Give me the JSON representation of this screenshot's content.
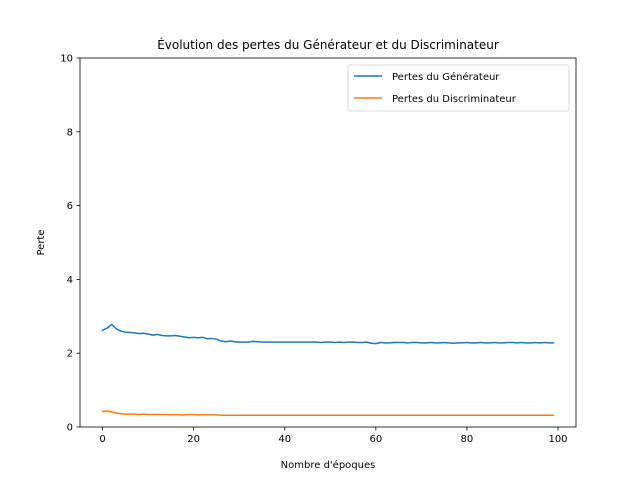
{
  "chart_data": {
    "type": "line",
    "title": "Évolution des pertes du Générateur et du Discriminateur",
    "xlabel": "Nombre d'époques",
    "ylabel": "Perte",
    "xlim": [
      -4.95,
      103.95
    ],
    "ylim": [
      0,
      10
    ],
    "xticks": [
      0,
      20,
      40,
      60,
      80,
      100
    ],
    "yticks": [
      0,
      2,
      4,
      6,
      8,
      10
    ],
    "grid": false,
    "legend_position": "top-right",
    "x": [
      0,
      1,
      2,
      3,
      4,
      5,
      6,
      7,
      8,
      9,
      10,
      11,
      12,
      13,
      14,
      15,
      16,
      17,
      18,
      19,
      20,
      21,
      22,
      23,
      24,
      25,
      26,
      27,
      28,
      29,
      30,
      31,
      32,
      33,
      34,
      35,
      36,
      37,
      38,
      39,
      40,
      41,
      42,
      43,
      44,
      45,
      46,
      47,
      48,
      49,
      50,
      51,
      52,
      53,
      54,
      55,
      56,
      57,
      58,
      59,
      60,
      61,
      62,
      63,
      64,
      65,
      66,
      67,
      68,
      69,
      70,
      71,
      72,
      73,
      74,
      75,
      76,
      77,
      78,
      79,
      80,
      81,
      82,
      83,
      84,
      85,
      86,
      87,
      88,
      89,
      90,
      91,
      92,
      93,
      94,
      95,
      96,
      97,
      98,
      99
    ],
    "series": [
      {
        "name": "Pertes du Générateur",
        "color": "#1f77b4",
        "values": [
          2.62,
          2.68,
          2.78,
          2.66,
          2.6,
          2.57,
          2.56,
          2.55,
          2.53,
          2.54,
          2.52,
          2.49,
          2.51,
          2.48,
          2.47,
          2.47,
          2.48,
          2.46,
          2.44,
          2.42,
          2.43,
          2.42,
          2.43,
          2.39,
          2.4,
          2.38,
          2.33,
          2.31,
          2.33,
          2.31,
          2.3,
          2.3,
          2.3,
          2.32,
          2.31,
          2.3,
          2.3,
          2.3,
          2.3,
          2.3,
          2.3,
          2.3,
          2.3,
          2.3,
          2.3,
          2.3,
          2.3,
          2.3,
          2.29,
          2.3,
          2.3,
          2.29,
          2.3,
          2.29,
          2.3,
          2.3,
          2.29,
          2.29,
          2.3,
          2.27,
          2.26,
          2.29,
          2.28,
          2.28,
          2.29,
          2.29,
          2.29,
          2.28,
          2.29,
          2.29,
          2.28,
          2.28,
          2.29,
          2.28,
          2.28,
          2.29,
          2.28,
          2.27,
          2.28,
          2.28,
          2.29,
          2.28,
          2.28,
          2.29,
          2.28,
          2.28,
          2.29,
          2.28,
          2.28,
          2.29,
          2.29,
          2.28,
          2.29,
          2.28,
          2.28,
          2.29,
          2.28,
          2.29,
          2.28,
          2.28
        ]
      },
      {
        "name": "Pertes du Discriminateur",
        "color": "#ff7f0e",
        "values": [
          0.42,
          0.43,
          0.41,
          0.38,
          0.36,
          0.35,
          0.35,
          0.35,
          0.34,
          0.35,
          0.34,
          0.34,
          0.34,
          0.34,
          0.34,
          0.33,
          0.34,
          0.33,
          0.33,
          0.34,
          0.34,
          0.33,
          0.34,
          0.33,
          0.33,
          0.33,
          0.32,
          0.32,
          0.32,
          0.32,
          0.32,
          0.32,
          0.32,
          0.32,
          0.32,
          0.32,
          0.32,
          0.32,
          0.32,
          0.32,
          0.32,
          0.32,
          0.32,
          0.32,
          0.32,
          0.32,
          0.32,
          0.32,
          0.32,
          0.32,
          0.32,
          0.32,
          0.32,
          0.32,
          0.32,
          0.32,
          0.32,
          0.32,
          0.32,
          0.32,
          0.32,
          0.32,
          0.32,
          0.32,
          0.32,
          0.32,
          0.32,
          0.32,
          0.32,
          0.32,
          0.32,
          0.32,
          0.32,
          0.32,
          0.32,
          0.32,
          0.32,
          0.32,
          0.32,
          0.32,
          0.32,
          0.32,
          0.32,
          0.32,
          0.32,
          0.32,
          0.32,
          0.32,
          0.32,
          0.32,
          0.32,
          0.32,
          0.32,
          0.32,
          0.32,
          0.32,
          0.32,
          0.32,
          0.32,
          0.32
        ]
      }
    ]
  }
}
